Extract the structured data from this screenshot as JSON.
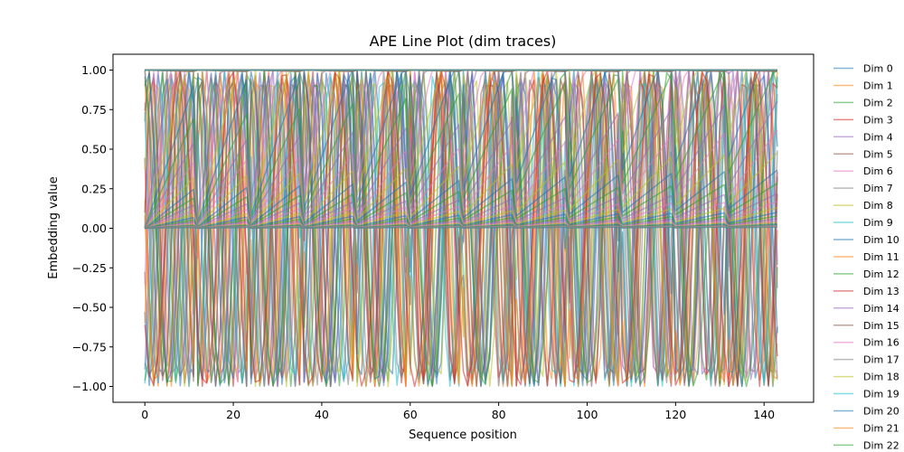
{
  "chart_data": {
    "type": "line",
    "title": "APE Line Plot (dim traces)",
    "xlabel": "Sequence position",
    "ylabel": "Embedding value",
    "xlim": [
      -7.2,
      151.2
    ],
    "ylim": [
      -1.1,
      1.1
    ],
    "xticks": [
      0,
      20,
      40,
      60,
      80,
      100,
      120,
      140
    ],
    "yticks": [
      -1.0,
      -0.75,
      -0.5,
      -0.25,
      0.0,
      0.25,
      0.5,
      0.75,
      1.0
    ],
    "xtick_labels": [
      "0",
      "20",
      "40",
      "60",
      "80",
      "100",
      "120",
      "140"
    ],
    "ytick_labels": [
      "−1.00",
      "−0.75",
      "−0.50",
      "−0.25",
      "0.00",
      "0.25",
      "0.50",
      "0.75",
      "1.00"
    ],
    "grid": false,
    "legend_position": "outside-right",
    "num_positions": 144,
    "segment_length": 12,
    "series": [
      {
        "name": "Dim 0",
        "color": "#1f77b4"
      },
      {
        "name": "Dim 1",
        "color": "#ff7f0e"
      },
      {
        "name": "Dim 2",
        "color": "#2ca02c"
      },
      {
        "name": "Dim 3",
        "color": "#d62728"
      },
      {
        "name": "Dim 4",
        "color": "#9467bd"
      },
      {
        "name": "Dim 5",
        "color": "#8c564b"
      },
      {
        "name": "Dim 6",
        "color": "#e377c2"
      },
      {
        "name": "Dim 7",
        "color": "#7f7f7f"
      },
      {
        "name": "Dim 8",
        "color": "#bcbd22"
      },
      {
        "name": "Dim 9",
        "color": "#17becf"
      },
      {
        "name": "Dim 10",
        "color": "#1f77b4"
      },
      {
        "name": "Dim 11",
        "color": "#ff7f0e"
      },
      {
        "name": "Dim 12",
        "color": "#2ca02c"
      },
      {
        "name": "Dim 13",
        "color": "#d62728"
      },
      {
        "name": "Dim 14",
        "color": "#9467bd"
      },
      {
        "name": "Dim 15",
        "color": "#8c564b"
      },
      {
        "name": "Dim 16",
        "color": "#e377c2"
      },
      {
        "name": "Dim 17",
        "color": "#7f7f7f"
      },
      {
        "name": "Dim 18",
        "color": "#bcbd22"
      },
      {
        "name": "Dim 19",
        "color": "#17becf"
      },
      {
        "name": "Dim 20",
        "color": "#1f77b4"
      },
      {
        "name": "Dim 21",
        "color": "#ff7f0e"
      },
      {
        "name": "Dim 22",
        "color": "#2ca02c"
      }
    ],
    "unlisted_traces": 48
  }
}
